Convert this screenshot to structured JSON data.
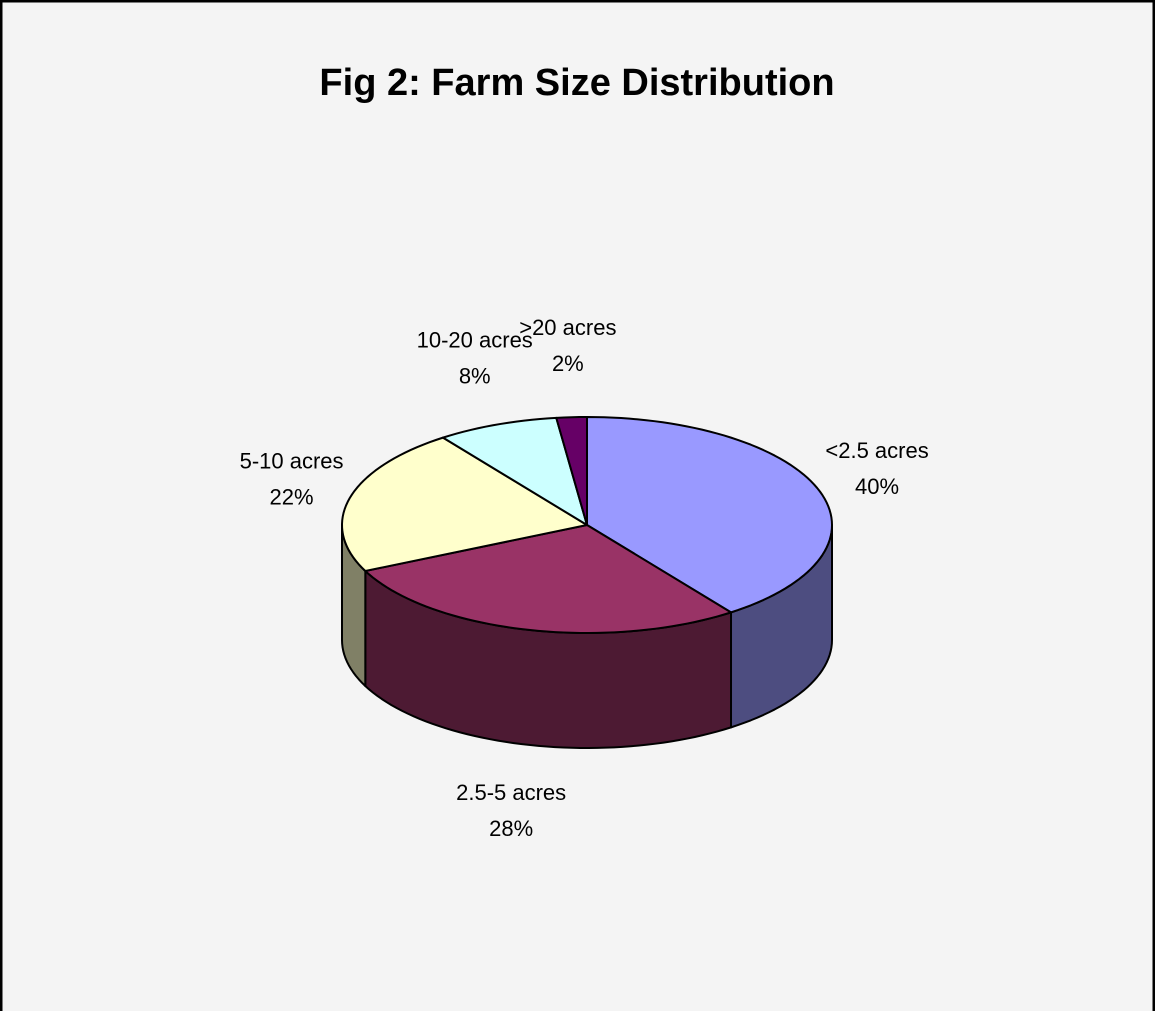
{
  "chart_data": {
    "type": "pie3d",
    "title": "Fig 2: Farm Size Distribution",
    "categories": [
      "<2.5 acres",
      "2.5-5 acres",
      "5-10 acres",
      "10-20 acres",
      ">20 acres"
    ],
    "values": [
      40,
      28,
      22,
      8,
      2
    ],
    "value_labels": [
      "40%",
      "28%",
      "22%",
      "8%",
      "2%"
    ],
    "colors": [
      "#9999ff",
      "#993366",
      "#ffffcc",
      "#ccffff",
      "#660066"
    ]
  }
}
